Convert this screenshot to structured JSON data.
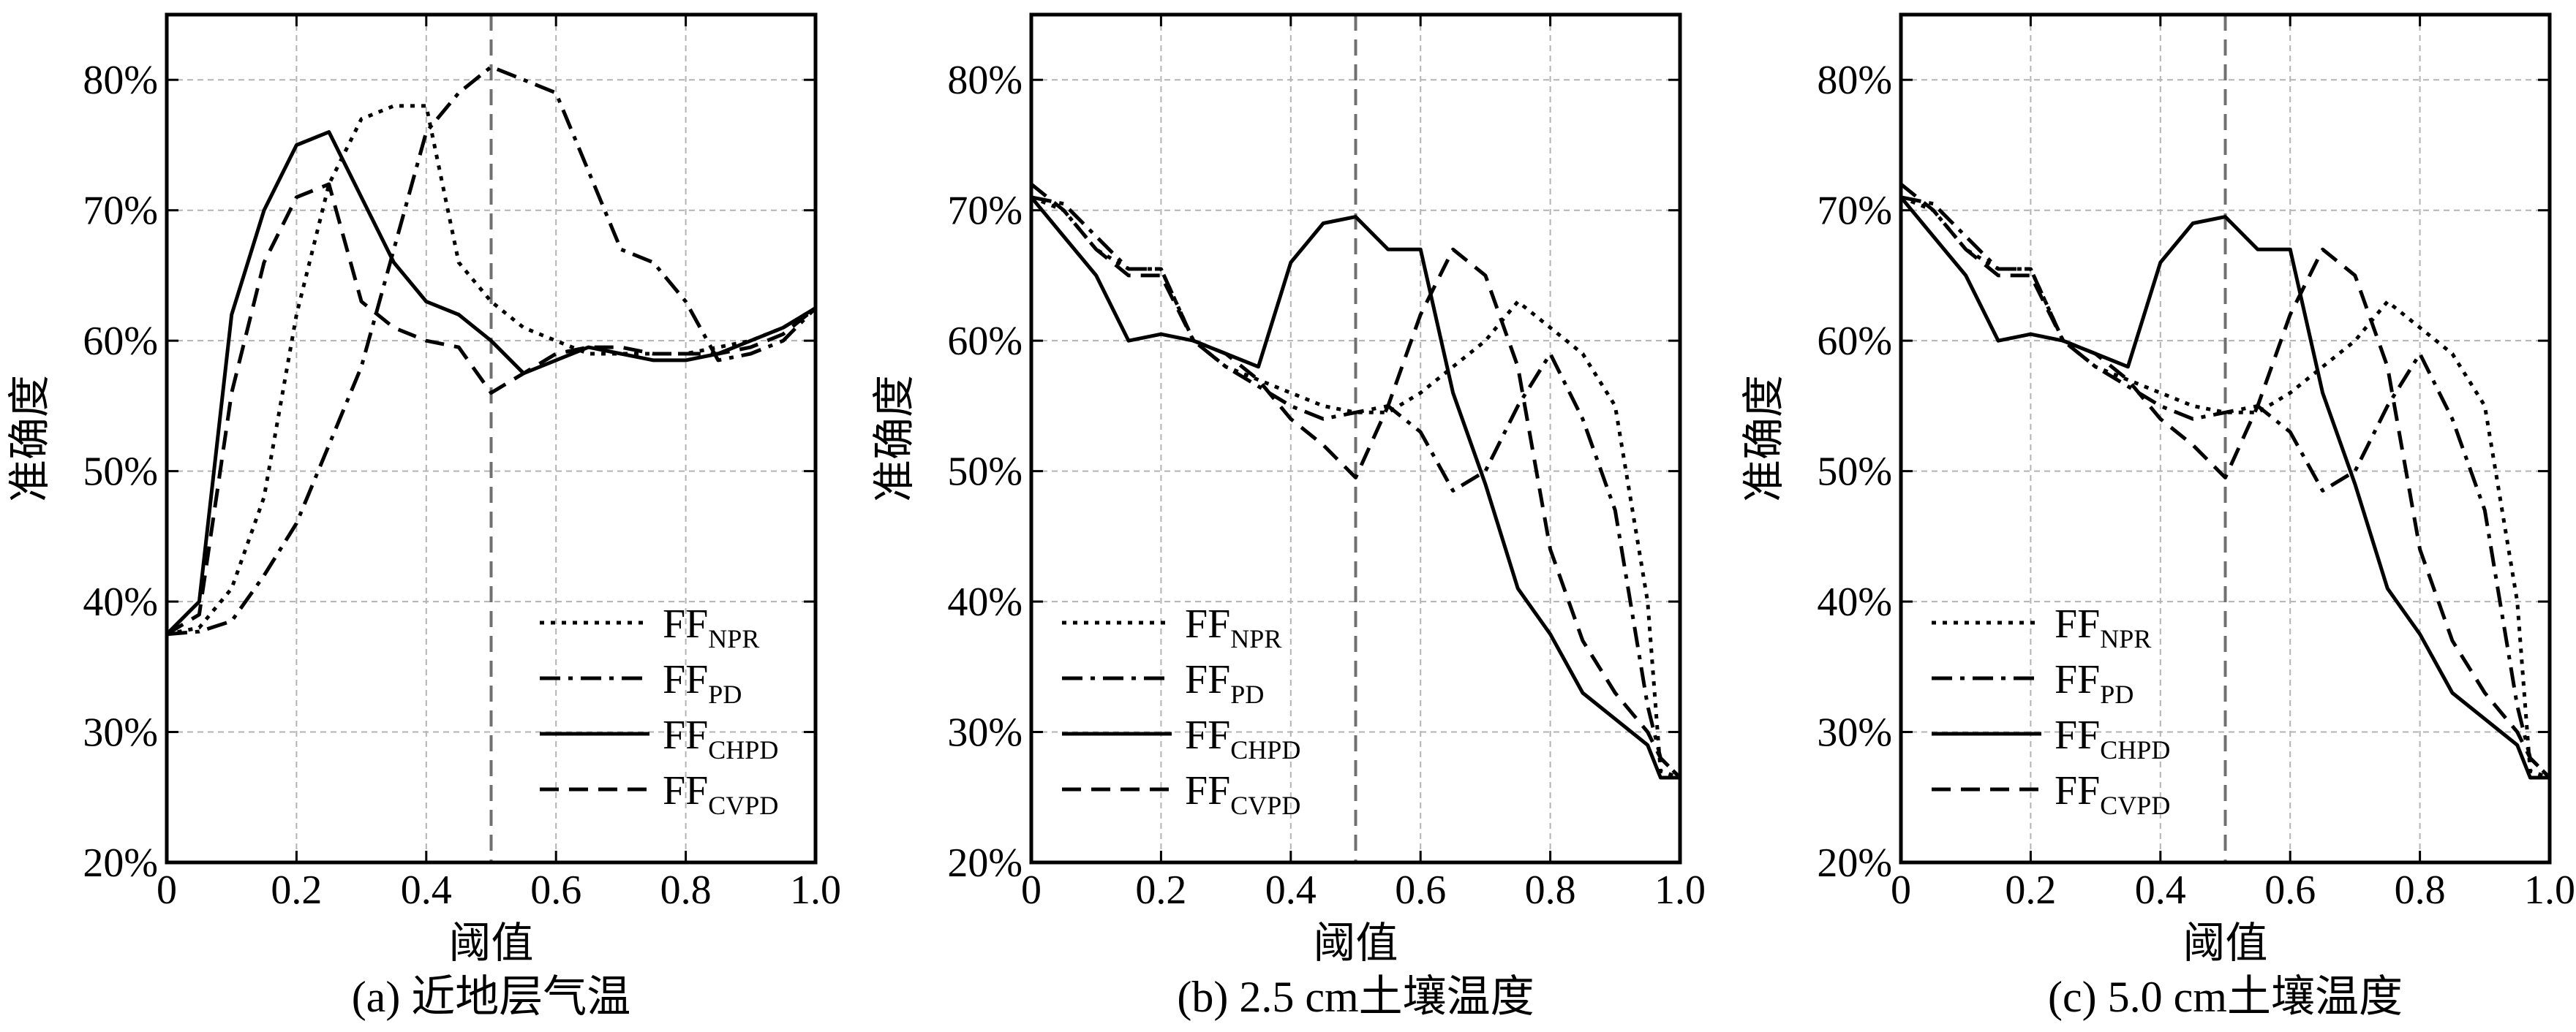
{
  "figure": {
    "panels": [
      {
        "caption": "(a) 近地层气温",
        "xlabel": "阈值",
        "ylabel": "准确度"
      },
      {
        "caption": "(b) 2.5 cm土壤温度",
        "xlabel": "阈值",
        "ylabel": "准确度"
      },
      {
        "caption": "(c) 5.0 cm土壤温度",
        "xlabel": "阈值",
        "ylabel": "准确度"
      }
    ]
  },
  "chart_data": [
    {
      "type": "line",
      "title": "(a) 近地层气温",
      "xlabel": "阈值",
      "ylabel": "准确度",
      "xlim": [
        0,
        1.0
      ],
      "ylim": [
        20,
        85
      ],
      "xticks": [
        "0",
        "0.2",
        "0.4",
        "0.6",
        "0.8",
        "1.0"
      ],
      "yticks": [
        "20%",
        "30%",
        "40%",
        "50%",
        "60%",
        "70%",
        "80%"
      ],
      "grid": true,
      "reference_line_x": 0.5,
      "legend_position": "bottom-right",
      "series": [
        {
          "name": "FF",
          "subscript": "NPR",
          "dash": "dotted",
          "x": [
            0,
            0.05,
            0.1,
            0.15,
            0.2,
            0.25,
            0.3,
            0.35,
            0.4,
            0.45,
            0.5,
            0.55,
            0.6,
            0.65,
            0.7,
            0.75,
            0.8,
            0.85,
            0.9,
            0.95,
            1.0
          ],
          "y": [
            37.5,
            38,
            41,
            48,
            62,
            72,
            77,
            78,
            78,
            66,
            63,
            61,
            60,
            59,
            59,
            59,
            59,
            59.5,
            60,
            61,
            62.5
          ]
        },
        {
          "name": "FF",
          "subscript": "PD",
          "dash": "dashdot",
          "x": [
            0,
            0.05,
            0.1,
            0.15,
            0.2,
            0.25,
            0.3,
            0.35,
            0.4,
            0.45,
            0.5,
            0.55,
            0.6,
            0.65,
            0.7,
            0.75,
            0.8,
            0.85,
            0.9,
            0.95,
            1.0
          ],
          "y": [
            37.5,
            37.7,
            38.5,
            42,
            46,
            52,
            58,
            67,
            76,
            79,
            81,
            80,
            79,
            73,
            67,
            66,
            63,
            58.5,
            59,
            60,
            62.5
          ]
        },
        {
          "name": "FF",
          "subscript": "CHPD",
          "dash": "solid",
          "x": [
            0,
            0.05,
            0.1,
            0.15,
            0.2,
            0.25,
            0.3,
            0.35,
            0.4,
            0.45,
            0.5,
            0.55,
            0.6,
            0.65,
            0.7,
            0.75,
            0.8,
            0.85,
            0.9,
            0.95,
            1.0
          ],
          "y": [
            37.5,
            40,
            62,
            70,
            75,
            76,
            71,
            66,
            63,
            62,
            60,
            57.5,
            58.5,
            59.5,
            59,
            58.5,
            58.5,
            59,
            60,
            61,
            62.5
          ]
        },
        {
          "name": "FF",
          "subscript": "CVPD",
          "dash": "dashed",
          "x": [
            0,
            0.05,
            0.1,
            0.15,
            0.2,
            0.25,
            0.3,
            0.35,
            0.4,
            0.45,
            0.5,
            0.55,
            0.6,
            0.65,
            0.7,
            0.75,
            0.8,
            0.85,
            0.9,
            0.95,
            1.0
          ],
          "y": [
            37.5,
            39,
            56,
            66,
            71,
            72,
            63,
            61,
            60,
            59.5,
            56,
            57.5,
            59,
            59.5,
            59.5,
            59,
            59,
            59,
            59.5,
            60.5,
            62.5
          ]
        }
      ]
    },
    {
      "type": "line",
      "title": "(b) 2.5 cm土壤温度",
      "xlabel": "阈值",
      "ylabel": "准确度",
      "xlim": [
        0,
        1.0
      ],
      "ylim": [
        20,
        85
      ],
      "xticks": [
        "0",
        "0.2",
        "0.4",
        "0.6",
        "0.8",
        "1.0"
      ],
      "yticks": [
        "20%",
        "30%",
        "40%",
        "50%",
        "60%",
        "70%",
        "80%"
      ],
      "grid": true,
      "reference_line_x": 0.5,
      "legend_position": "bottom-left",
      "series": [
        {
          "name": "FF",
          "subscript": "NPR",
          "dash": "dotted",
          "x": [
            0,
            0.05,
            0.1,
            0.15,
            0.2,
            0.25,
            0.3,
            0.35,
            0.4,
            0.45,
            0.5,
            0.55,
            0.6,
            0.65,
            0.7,
            0.75,
            0.8,
            0.85,
            0.9,
            0.95,
            0.97,
            1.0
          ],
          "y": [
            71,
            70,
            67,
            65.5,
            65.5,
            60,
            58,
            57,
            56,
            55,
            54.5,
            54.5,
            56,
            58,
            60,
            63,
            61,
            59,
            55,
            40,
            27,
            26.5
          ]
        },
        {
          "name": "FF",
          "subscript": "PD",
          "dash": "dashdot",
          "x": [
            0,
            0.05,
            0.1,
            0.15,
            0.2,
            0.25,
            0.3,
            0.35,
            0.4,
            0.45,
            0.5,
            0.55,
            0.6,
            0.65,
            0.7,
            0.75,
            0.8,
            0.85,
            0.9,
            0.95,
            0.97,
            1.0
          ],
          "y": [
            71,
            70.5,
            68,
            65.5,
            65.5,
            60,
            58,
            56.5,
            55,
            54,
            54.5,
            55,
            53,
            48.5,
            50,
            55,
            59,
            54,
            47,
            32,
            28,
            26.5
          ]
        },
        {
          "name": "FF",
          "subscript": "CHPD",
          "dash": "solid",
          "x": [
            0,
            0.05,
            0.1,
            0.15,
            0.2,
            0.25,
            0.3,
            0.35,
            0.4,
            0.45,
            0.5,
            0.55,
            0.6,
            0.65,
            0.7,
            0.75,
            0.8,
            0.85,
            0.9,
            0.95,
            0.97,
            1.0
          ],
          "y": [
            71,
            68,
            65,
            60,
            60.5,
            60,
            59,
            58,
            66,
            69,
            69.5,
            67,
            67,
            56,
            49,
            41,
            37.5,
            33,
            31,
            29,
            26.5,
            26.5
          ]
        },
        {
          "name": "FF",
          "subscript": "CVPD",
          "dash": "dashed",
          "x": [
            0,
            0.05,
            0.1,
            0.15,
            0.2,
            0.25,
            0.3,
            0.35,
            0.4,
            0.45,
            0.5,
            0.55,
            0.6,
            0.65,
            0.7,
            0.75,
            0.8,
            0.85,
            0.9,
            0.95,
            0.97,
            1.0
          ],
          "y": [
            72,
            70,
            67,
            65,
            65,
            60,
            59,
            57,
            54,
            52,
            49.5,
            55,
            62,
            67,
            65,
            58,
            44,
            37,
            33,
            30,
            28,
            26.5
          ]
        }
      ]
    },
    {
      "type": "line",
      "title": "(c) 5.0 cm土壤温度",
      "xlabel": "阈值",
      "ylabel": "准确度",
      "xlim": [
        0,
        1.0
      ],
      "ylim": [
        20,
        85
      ],
      "xticks": [
        "0",
        "0.2",
        "0.4",
        "0.6",
        "0.8",
        "1.0"
      ],
      "yticks": [
        "20%",
        "30%",
        "40%",
        "50%",
        "60%",
        "70%",
        "80%"
      ],
      "grid": true,
      "reference_line_x": 0.5,
      "legend_position": "bottom-left",
      "series": [
        {
          "name": "FF",
          "subscript": "NPR",
          "dash": "dotted",
          "x": [
            0,
            0.05,
            0.1,
            0.15,
            0.2,
            0.25,
            0.3,
            0.35,
            0.4,
            0.45,
            0.5,
            0.55,
            0.6,
            0.65,
            0.7,
            0.75,
            0.8,
            0.85,
            0.9,
            0.95,
            0.97,
            1.0
          ],
          "y": [
            71,
            70,
            67,
            65.5,
            65.5,
            60,
            58,
            57,
            56,
            55,
            54.5,
            54.5,
            56,
            58,
            60,
            63,
            61,
            59,
            55,
            40,
            27,
            26.5
          ]
        },
        {
          "name": "FF",
          "subscript": "PD",
          "dash": "dashdot",
          "x": [
            0,
            0.05,
            0.1,
            0.15,
            0.2,
            0.25,
            0.3,
            0.35,
            0.4,
            0.45,
            0.5,
            0.55,
            0.6,
            0.65,
            0.7,
            0.75,
            0.8,
            0.85,
            0.9,
            0.95,
            0.97,
            1.0
          ],
          "y": [
            71,
            70.5,
            68,
            65.5,
            65.5,
            60,
            58,
            56.5,
            55,
            54,
            54.5,
            55,
            53,
            48.5,
            50,
            55,
            59,
            54,
            47,
            32,
            28,
            26.5
          ]
        },
        {
          "name": "FF",
          "subscript": "CHPD",
          "dash": "solid",
          "x": [
            0,
            0.05,
            0.1,
            0.15,
            0.2,
            0.25,
            0.3,
            0.35,
            0.4,
            0.45,
            0.5,
            0.55,
            0.6,
            0.65,
            0.7,
            0.75,
            0.8,
            0.85,
            0.9,
            0.95,
            0.97,
            1.0
          ],
          "y": [
            71,
            68,
            65,
            60,
            60.5,
            60,
            59,
            58,
            66,
            69,
            69.5,
            67,
            67,
            56,
            49,
            41,
            37.5,
            33,
            31,
            29,
            26.5,
            26.5
          ]
        },
        {
          "name": "FF",
          "subscript": "CVPD",
          "dash": "dashed",
          "x": [
            0,
            0.05,
            0.1,
            0.15,
            0.2,
            0.25,
            0.3,
            0.35,
            0.4,
            0.45,
            0.5,
            0.55,
            0.6,
            0.65,
            0.7,
            0.75,
            0.8,
            0.85,
            0.9,
            0.95,
            0.97,
            1.0
          ],
          "y": [
            72,
            70,
            67,
            65,
            65,
            60,
            59,
            57,
            54,
            52,
            49.5,
            55,
            62,
            67,
            65,
            58,
            44,
            37,
            33,
            30,
            28,
            26.5
          ]
        }
      ]
    }
  ]
}
